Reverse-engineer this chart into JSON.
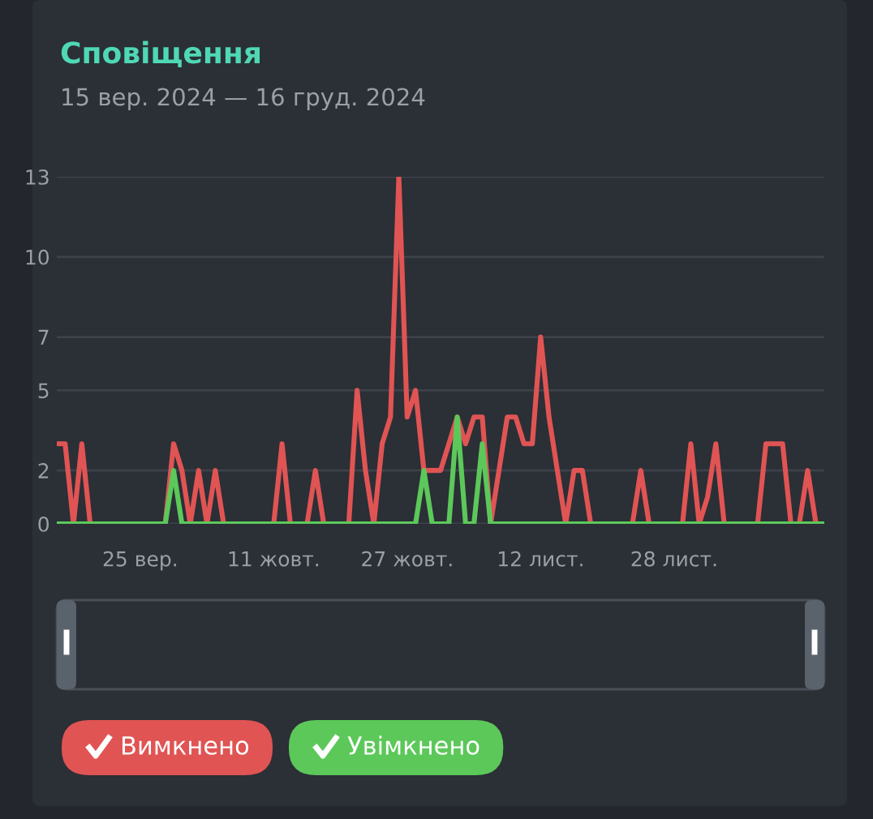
{
  "chart_data": {
    "type": "line",
    "title": "Сповіщення",
    "subtitle": "15 вер. 2024 — 16 груд. 2024",
    "x": [
      "2024-09-15",
      "2024-09-16",
      "2024-09-17",
      "2024-09-18",
      "2024-09-19",
      "2024-09-20",
      "2024-09-21",
      "2024-09-22",
      "2024-09-23",
      "2024-09-24",
      "2024-09-25",
      "2024-09-26",
      "2024-09-27",
      "2024-09-28",
      "2024-09-29",
      "2024-09-30",
      "2024-10-01",
      "2024-10-02",
      "2024-10-03",
      "2024-10-04",
      "2024-10-05",
      "2024-10-06",
      "2024-10-07",
      "2024-10-08",
      "2024-10-09",
      "2024-10-10",
      "2024-10-11",
      "2024-10-12",
      "2024-10-13",
      "2024-10-14",
      "2024-10-15",
      "2024-10-16",
      "2024-10-17",
      "2024-10-18",
      "2024-10-19",
      "2024-10-20",
      "2024-10-21",
      "2024-10-22",
      "2024-10-23",
      "2024-10-24",
      "2024-10-25",
      "2024-10-26",
      "2024-10-27",
      "2024-10-28",
      "2024-10-29",
      "2024-10-30",
      "2024-10-31",
      "2024-11-01",
      "2024-11-02",
      "2024-11-03",
      "2024-11-04",
      "2024-11-05",
      "2024-11-06",
      "2024-11-07",
      "2024-11-08",
      "2024-11-09",
      "2024-11-10",
      "2024-11-11",
      "2024-11-12",
      "2024-11-13",
      "2024-11-14",
      "2024-11-15",
      "2024-11-16",
      "2024-11-17",
      "2024-11-18",
      "2024-11-19",
      "2024-11-20",
      "2024-11-21",
      "2024-11-22",
      "2024-11-23",
      "2024-11-24",
      "2024-11-25",
      "2024-11-26",
      "2024-11-27",
      "2024-11-28",
      "2024-11-29",
      "2024-11-30",
      "2024-12-01",
      "2024-12-02",
      "2024-12-03",
      "2024-12-04",
      "2024-12-05",
      "2024-12-06",
      "2024-12-07",
      "2024-12-08",
      "2024-12-09",
      "2024-12-10",
      "2024-12-11",
      "2024-12-12",
      "2024-12-13",
      "2024-12-14",
      "2024-12-15",
      "2024-12-16"
    ],
    "xlim": [
      "2024-09-15",
      "2024-12-16"
    ],
    "xticks": [
      {
        "value": "2024-09-25",
        "label": "25 вер."
      },
      {
        "value": "2024-10-11",
        "label": "11 жовт."
      },
      {
        "value": "2024-10-27",
        "label": "27 жовт."
      },
      {
        "value": "2024-11-12",
        "label": "12 лист."
      },
      {
        "value": "2024-11-28",
        "label": "28 лист."
      }
    ],
    "ylim": [
      0,
      13
    ],
    "yticks": [
      0,
      2,
      5,
      7,
      10,
      13
    ],
    "grid": "y",
    "legend": "bottom",
    "marker": "none",
    "line_style": "solid",
    "series": [
      {
        "name": "Вимкнено",
        "color": "#e05454",
        "values": [
          3,
          3,
          0,
          3,
          0,
          0,
          0,
          0,
          0,
          0,
          0,
          0,
          0,
          0,
          3,
          2,
          0,
          2,
          0,
          2,
          0,
          0,
          0,
          0,
          0,
          0,
          0,
          3,
          0,
          0,
          0,
          2,
          0,
          0,
          0,
          0,
          5,
          2,
          0,
          3,
          4,
          13,
          4,
          5,
          2,
          2,
          2,
          3,
          4,
          3,
          4,
          4,
          0,
          2,
          4,
          4,
          3,
          3,
          7,
          4,
          2,
          0,
          2,
          2,
          0,
          0,
          0,
          0,
          0,
          0,
          2,
          0,
          0,
          0,
          0,
          0,
          3,
          0,
          1,
          3,
          0,
          0,
          0,
          0,
          0,
          3,
          3,
          3,
          0,
          0,
          2,
          0,
          0
        ]
      },
      {
        "name": "Увімкнено",
        "color": "#5cc85a",
        "values": [
          0,
          0,
          0,
          0,
          0,
          0,
          0,
          0,
          0,
          0,
          0,
          0,
          0,
          0,
          2,
          0,
          0,
          0,
          0,
          0,
          0,
          0,
          0,
          0,
          0,
          0,
          0,
          0,
          0,
          0,
          0,
          0,
          0,
          0,
          0,
          0,
          0,
          0,
          0,
          0,
          0,
          0,
          0,
          0,
          2,
          0,
          0,
          0,
          4,
          0,
          0,
          3,
          0,
          0,
          0,
          0,
          0,
          0,
          0,
          0,
          0,
          0,
          0,
          0,
          0,
          0,
          0,
          0,
          0,
          0,
          0,
          0,
          0,
          0,
          0,
          0,
          0,
          0,
          0,
          0,
          0,
          0,
          0,
          0,
          0,
          0,
          0,
          0,
          0,
          0,
          0,
          0,
          0
        ]
      }
    ]
  }
}
